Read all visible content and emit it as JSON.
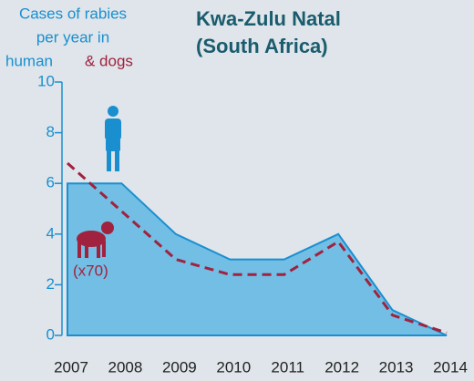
{
  "chart_data": {
    "type": "area_line",
    "title": [
      "Kwa-Zulu Natal",
      "(South Africa)"
    ],
    "y_label": [
      "Cases of rabies",
      "per year in"
    ],
    "annotation": "(x70)",
    "x": [
      2007,
      2008,
      2009,
      2010,
      2011,
      2012,
      2013,
      2014
    ],
    "xlim": [
      2007,
      2014
    ],
    "series": [
      {
        "name": "human",
        "color": "#1a8fd0",
        "fill": "#72bee4",
        "values": [
          6,
          6,
          4,
          3,
          3,
          4,
          1,
          0
        ]
      },
      {
        "name": "& dogs",
        "color": "#a0223e",
        "values": [
          6.8,
          4.9,
          3.0,
          2.4,
          2.4,
          3.7,
          0.8,
          0.1
        ]
      }
    ],
    "ylim": [
      0,
      10
    ],
    "yticks": [
      0,
      2,
      4,
      6,
      8,
      10
    ]
  }
}
